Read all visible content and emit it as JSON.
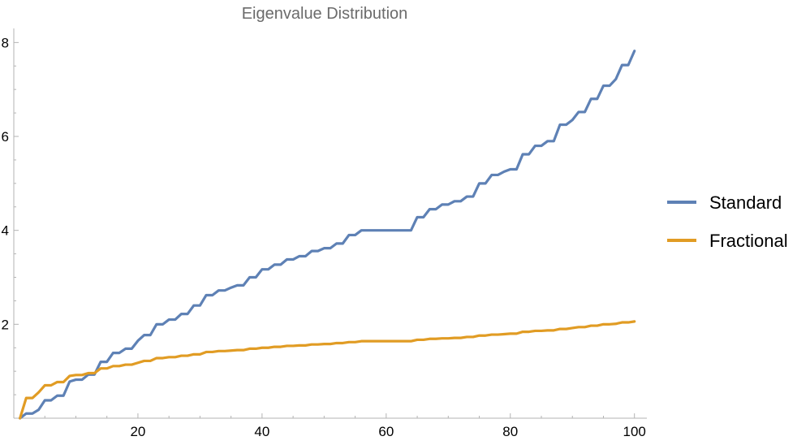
{
  "chart_data": {
    "type": "line",
    "title": "Eigenvalue Distribution",
    "xlabel": "",
    "ylabel": "",
    "xlim": [
      0,
      102
    ],
    "ylim": [
      0,
      8.3
    ],
    "x_major_ticks": [
      20,
      40,
      60,
      80,
      100
    ],
    "x_tick_labels": [
      "20",
      "40",
      "60",
      "80",
      "100"
    ],
    "x_minor_step": 5,
    "y_major_ticks": [
      2,
      4,
      6,
      8
    ],
    "y_tick_labels": [
      "2",
      "4",
      "6",
      "8"
    ],
    "y_minor_step": 0.5,
    "grid": false,
    "legend_position": "right",
    "series": [
      {
        "name": "Standard",
        "color": "#5e81b5",
        "points": [
          [
            1,
            0.0
          ],
          [
            2,
            0.1
          ],
          [
            3,
            0.1
          ],
          [
            4,
            0.18
          ],
          [
            5,
            0.38
          ],
          [
            6,
            0.38
          ],
          [
            7,
            0.48
          ],
          [
            8,
            0.48
          ],
          [
            9,
            0.78
          ],
          [
            10,
            0.82
          ],
          [
            11,
            0.82
          ],
          [
            12,
            0.93
          ],
          [
            13,
            0.93
          ],
          [
            14,
            1.2
          ],
          [
            15,
            1.2
          ],
          [
            16,
            1.39
          ],
          [
            17,
            1.39
          ],
          [
            18,
            1.48
          ],
          [
            19,
            1.48
          ],
          [
            20,
            1.65
          ],
          [
            21,
            1.77
          ],
          [
            22,
            1.77
          ],
          [
            23,
            2.0
          ],
          [
            24,
            2.0
          ],
          [
            25,
            2.1
          ],
          [
            26,
            2.1
          ],
          [
            27,
            2.22
          ],
          [
            28,
            2.22
          ],
          [
            29,
            2.4
          ],
          [
            30,
            2.4
          ],
          [
            31,
            2.62
          ],
          [
            32,
            2.62
          ],
          [
            33,
            2.72
          ],
          [
            34,
            2.72
          ],
          [
            35,
            2.78
          ],
          [
            36,
            2.83
          ],
          [
            37,
            2.83
          ],
          [
            38,
            3.0
          ],
          [
            39,
            3.0
          ],
          [
            40,
            3.17
          ],
          [
            41,
            3.17
          ],
          [
            42,
            3.27
          ],
          [
            43,
            3.27
          ],
          [
            44,
            3.38
          ],
          [
            45,
            3.38
          ],
          [
            46,
            3.45
          ],
          [
            47,
            3.45
          ],
          [
            48,
            3.56
          ],
          [
            49,
            3.56
          ],
          [
            50,
            3.62
          ],
          [
            51,
            3.62
          ],
          [
            52,
            3.72
          ],
          [
            53,
            3.72
          ],
          [
            54,
            3.9
          ],
          [
            55,
            3.9
          ],
          [
            56,
            4.0
          ],
          [
            57,
            4.0
          ],
          [
            58,
            4.0
          ],
          [
            59,
            4.0
          ],
          [
            60,
            4.0
          ],
          [
            61,
            4.0
          ],
          [
            62,
            4.0
          ],
          [
            63,
            4.0
          ],
          [
            64,
            4.0
          ],
          [
            65,
            4.28
          ],
          [
            66,
            4.28
          ],
          [
            67,
            4.45
          ],
          [
            68,
            4.45
          ],
          [
            69,
            4.55
          ],
          [
            70,
            4.55
          ],
          [
            71,
            4.62
          ],
          [
            72,
            4.62
          ],
          [
            73,
            4.72
          ],
          [
            74,
            4.72
          ],
          [
            75,
            5.0
          ],
          [
            76,
            5.0
          ],
          [
            77,
            5.18
          ],
          [
            78,
            5.18
          ],
          [
            79,
            5.25
          ],
          [
            80,
            5.3
          ],
          [
            81,
            5.3
          ],
          [
            82,
            5.62
          ],
          [
            83,
            5.62
          ],
          [
            84,
            5.8
          ],
          [
            85,
            5.8
          ],
          [
            86,
            5.9
          ],
          [
            87,
            5.9
          ],
          [
            88,
            6.25
          ],
          [
            89,
            6.25
          ],
          [
            90,
            6.35
          ],
          [
            91,
            6.52
          ],
          [
            92,
            6.52
          ],
          [
            93,
            6.8
          ],
          [
            94,
            6.8
          ],
          [
            95,
            7.08
          ],
          [
            96,
            7.08
          ],
          [
            97,
            7.22
          ],
          [
            98,
            7.52
          ],
          [
            99,
            7.52
          ],
          [
            100,
            7.82
          ]
        ]
      },
      {
        "name": "Fractional",
        "color": "#e19c24",
        "points": [
          [
            1,
            0.0
          ],
          [
            2,
            0.43
          ],
          [
            3,
            0.43
          ],
          [
            4,
            0.55
          ],
          [
            5,
            0.7
          ],
          [
            6,
            0.7
          ],
          [
            7,
            0.77
          ],
          [
            8,
            0.77
          ],
          [
            9,
            0.9
          ],
          [
            10,
            0.92
          ],
          [
            11,
            0.92
          ],
          [
            12,
            0.96
          ],
          [
            13,
            0.96
          ],
          [
            14,
            1.06
          ],
          [
            15,
            1.06
          ],
          [
            16,
            1.11
          ],
          [
            17,
            1.11
          ],
          [
            18,
            1.14
          ],
          [
            19,
            1.14
          ],
          [
            20,
            1.18
          ],
          [
            21,
            1.22
          ],
          [
            22,
            1.22
          ],
          [
            23,
            1.28
          ],
          [
            24,
            1.28
          ],
          [
            25,
            1.3
          ],
          [
            26,
            1.3
          ],
          [
            27,
            1.33
          ],
          [
            28,
            1.33
          ],
          [
            29,
            1.36
          ],
          [
            30,
            1.36
          ],
          [
            31,
            1.41
          ],
          [
            32,
            1.41
          ],
          [
            33,
            1.43
          ],
          [
            34,
            1.43
          ],
          [
            35,
            1.44
          ],
          [
            36,
            1.45
          ],
          [
            37,
            1.45
          ],
          [
            38,
            1.48
          ],
          [
            39,
            1.48
          ],
          [
            40,
            1.5
          ],
          [
            41,
            1.5
          ],
          [
            42,
            1.52
          ],
          [
            43,
            1.52
          ],
          [
            44,
            1.54
          ],
          [
            45,
            1.54
          ],
          [
            46,
            1.55
          ],
          [
            47,
            1.55
          ],
          [
            48,
            1.57
          ],
          [
            49,
            1.57
          ],
          [
            50,
            1.58
          ],
          [
            51,
            1.58
          ],
          [
            52,
            1.6
          ],
          [
            53,
            1.6
          ],
          [
            54,
            1.62
          ],
          [
            55,
            1.62
          ],
          [
            56,
            1.64
          ],
          [
            57,
            1.64
          ],
          [
            58,
            1.64
          ],
          [
            59,
            1.64
          ],
          [
            60,
            1.64
          ],
          [
            61,
            1.64
          ],
          [
            62,
            1.64
          ],
          [
            63,
            1.64
          ],
          [
            64,
            1.64
          ],
          [
            65,
            1.67
          ],
          [
            66,
            1.67
          ],
          [
            67,
            1.69
          ],
          [
            68,
            1.69
          ],
          [
            69,
            1.7
          ],
          [
            70,
            1.7
          ],
          [
            71,
            1.71
          ],
          [
            72,
            1.71
          ],
          [
            73,
            1.73
          ],
          [
            74,
            1.73
          ],
          [
            75,
            1.76
          ],
          [
            76,
            1.76
          ],
          [
            77,
            1.78
          ],
          [
            78,
            1.78
          ],
          [
            79,
            1.79
          ],
          [
            80,
            1.8
          ],
          [
            81,
            1.8
          ],
          [
            82,
            1.84
          ],
          [
            83,
            1.84
          ],
          [
            84,
            1.86
          ],
          [
            85,
            1.86
          ],
          [
            86,
            1.87
          ],
          [
            87,
            1.87
          ],
          [
            88,
            1.9
          ],
          [
            89,
            1.9
          ],
          [
            90,
            1.92
          ],
          [
            91,
            1.94
          ],
          [
            92,
            1.94
          ],
          [
            93,
            1.97
          ],
          [
            94,
            1.97
          ],
          [
            95,
            2.0
          ],
          [
            96,
            2.0
          ],
          [
            97,
            2.01
          ],
          [
            98,
            2.04
          ],
          [
            99,
            2.04
          ],
          [
            100,
            2.06
          ]
        ]
      }
    ]
  }
}
